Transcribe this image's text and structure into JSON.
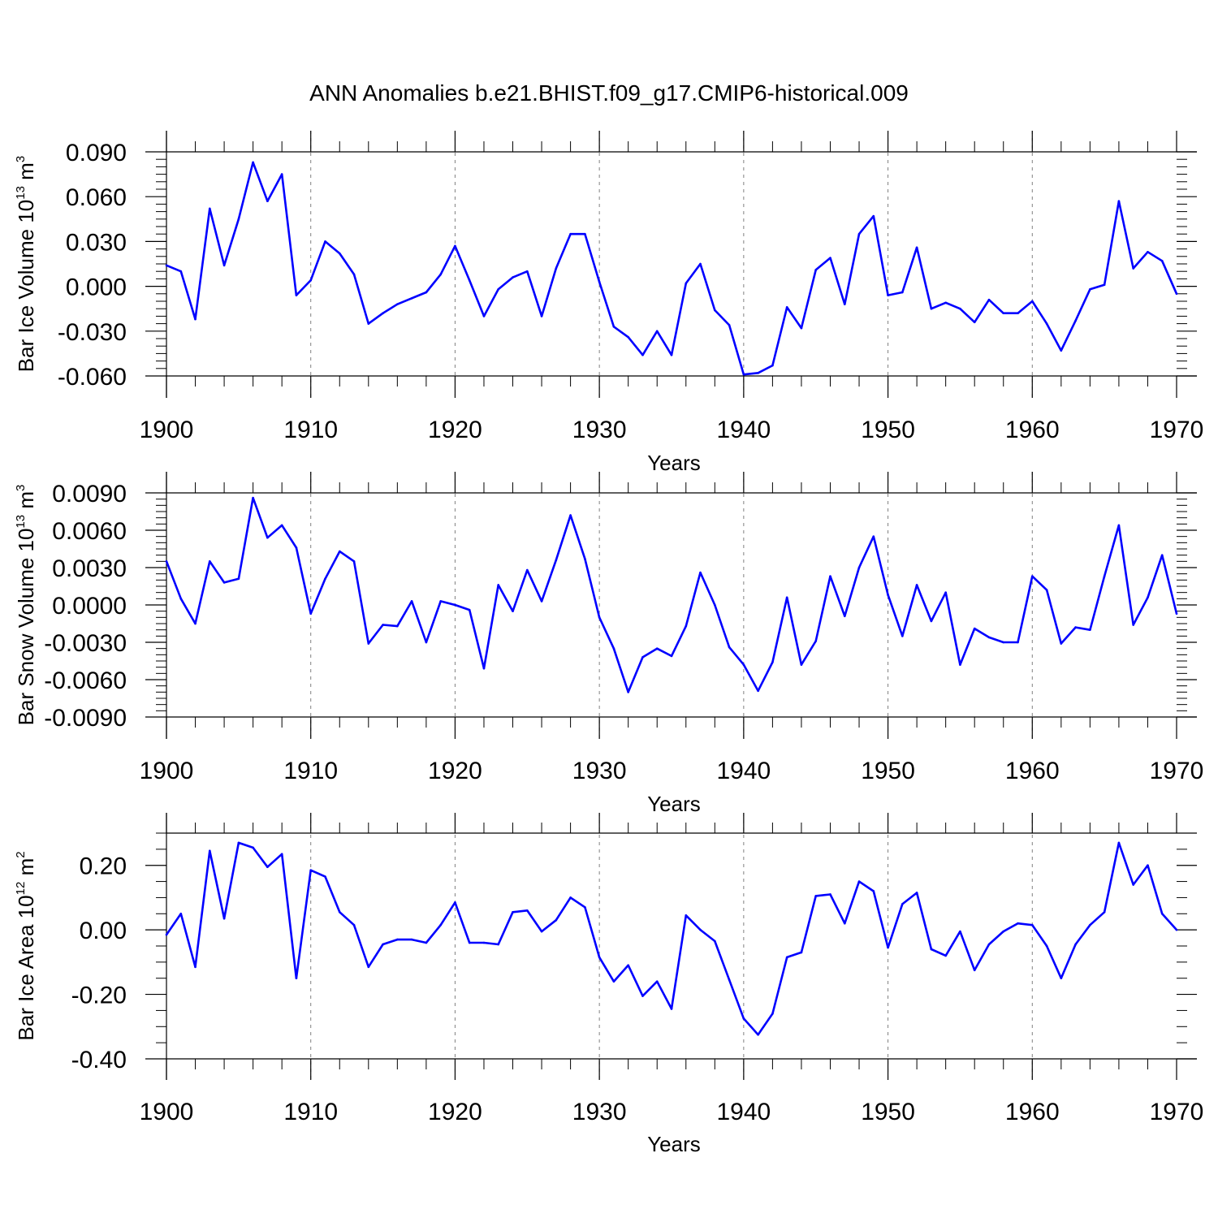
{
  "colors": {
    "line": "#0000ff",
    "axis": "#000000",
    "grid": "#808080",
    "background": "#ffffff"
  },
  "chart_data": {
    "title": "ANN Anomalies b.e21.BHIST.f09_g17.CMIP6-historical.009",
    "panels": [
      {
        "type": "line",
        "ylabel": {
          "base": "Bar Ice Volume 10",
          "exponent": "13",
          "unit": " m",
          "unit_exponent": "3"
        },
        "xlabel": "Years",
        "xlim": [
          1900,
          1970
        ],
        "ylim": [
          -0.06,
          0.09
        ],
        "xticks": [
          1900,
          1910,
          1920,
          1930,
          1940,
          1950,
          1960,
          1970
        ],
        "xtick_labels": [
          "1900",
          "1910",
          "1920",
          "1930",
          "1940",
          "1950",
          "1960",
          "1970"
        ],
        "yticks": [
          -0.06,
          -0.03,
          0.0,
          0.03,
          0.06,
          0.09
        ],
        "ytick_labels": [
          "-0.060",
          "-0.030",
          "0.000",
          "0.030",
          "0.060",
          "0.090"
        ],
        "grid_x": [
          1910,
          1920,
          1930,
          1940,
          1950,
          1960
        ],
        "x": [
          1900,
          1901,
          1902,
          1903,
          1904,
          1905,
          1906,
          1907,
          1908,
          1909,
          1910,
          1911,
          1912,
          1913,
          1914,
          1915,
          1916,
          1917,
          1918,
          1919,
          1920,
          1921,
          1922,
          1923,
          1924,
          1925,
          1926,
          1927,
          1928,
          1929,
          1930,
          1931,
          1932,
          1933,
          1934,
          1935,
          1936,
          1937,
          1938,
          1939,
          1940,
          1941,
          1942,
          1943,
          1944,
          1945,
          1946,
          1947,
          1948,
          1949,
          1950,
          1951,
          1952,
          1953,
          1954,
          1955,
          1956,
          1957,
          1958,
          1959,
          1960,
          1961,
          1962,
          1963,
          1964,
          1965,
          1966,
          1967,
          1968,
          1969,
          1970
        ],
        "y": [
          0.014,
          0.01,
          -0.022,
          0.052,
          0.014,
          0.045,
          0.083,
          0.057,
          0.075,
          -0.006,
          0.004,
          0.03,
          0.022,
          0.008,
          -0.025,
          -0.018,
          -0.012,
          -0.008,
          -0.004,
          0.008,
          0.027,
          0.004,
          -0.02,
          -0.002,
          0.006,
          0.01,
          -0.02,
          0.012,
          0.035,
          0.035,
          0.003,
          -0.027,
          -0.034,
          -0.046,
          -0.03,
          -0.046,
          0.002,
          0.015,
          -0.016,
          -0.026,
          -0.059,
          -0.058,
          -0.053,
          -0.014,
          -0.028,
          0.011,
          0.019,
          -0.012,
          0.035,
          0.047,
          -0.006,
          -0.004,
          0.026,
          -0.015,
          -0.011,
          -0.015,
          -0.024,
          -0.009,
          -0.018,
          -0.018,
          -0.01,
          -0.025,
          -0.043,
          -0.023,
          -0.002,
          0.001,
          0.057,
          0.012,
          0.023,
          0.017,
          -0.005
        ]
      },
      {
        "type": "line",
        "ylabel": {
          "base": "Bar Snow Volume 10",
          "exponent": "13",
          "unit": " m",
          "unit_exponent": "3"
        },
        "xlabel": "Years",
        "xlim": [
          1900,
          1970
        ],
        "ylim": [
          -0.009,
          0.009
        ],
        "xticks": [
          1900,
          1910,
          1920,
          1930,
          1940,
          1950,
          1960,
          1970
        ],
        "xtick_labels": [
          "1900",
          "1910",
          "1920",
          "1930",
          "1940",
          "1950",
          "1960",
          "1970"
        ],
        "yticks": [
          -0.009,
          -0.006,
          -0.003,
          0.0,
          0.003,
          0.006,
          0.009
        ],
        "ytick_labels": [
          "-0.0090",
          "-0.0060",
          "-0.0030",
          "0.0000",
          "0.0030",
          "0.0060",
          "0.0090"
        ],
        "grid_x": [
          1910,
          1920,
          1930,
          1940,
          1950,
          1960
        ],
        "x": [
          1900,
          1901,
          1902,
          1903,
          1904,
          1905,
          1906,
          1907,
          1908,
          1909,
          1910,
          1911,
          1912,
          1913,
          1914,
          1915,
          1916,
          1917,
          1918,
          1919,
          1920,
          1921,
          1922,
          1923,
          1924,
          1925,
          1926,
          1927,
          1928,
          1929,
          1930,
          1931,
          1932,
          1933,
          1934,
          1935,
          1936,
          1937,
          1938,
          1939,
          1940,
          1941,
          1942,
          1943,
          1944,
          1945,
          1946,
          1947,
          1948,
          1949,
          1950,
          1951,
          1952,
          1953,
          1954,
          1955,
          1956,
          1957,
          1958,
          1959,
          1960,
          1961,
          1962,
          1963,
          1964,
          1965,
          1966,
          1967,
          1968,
          1969,
          1970
        ],
        "y": [
          0.0035,
          0.0005,
          -0.0015,
          0.0035,
          0.0018,
          0.0021,
          0.0086,
          0.0054,
          0.0064,
          0.0046,
          -0.0007,
          0.0021,
          0.0043,
          0.0035,
          -0.0031,
          -0.0016,
          -0.0017,
          0.0003,
          -0.003,
          0.0003,
          0.0,
          -0.0004,
          -0.0051,
          0.0016,
          -0.0005,
          0.0028,
          0.0003,
          0.0036,
          0.0072,
          0.0037,
          -0.001,
          -0.0035,
          -0.007,
          -0.0042,
          -0.0035,
          -0.0041,
          -0.0017,
          0.0026,
          0.0,
          -0.0034,
          -0.0048,
          -0.0069,
          -0.0046,
          0.0006,
          -0.0048,
          -0.0029,
          0.0023,
          -0.0009,
          0.003,
          0.0055,
          0.0008,
          -0.0025,
          0.0016,
          -0.0013,
          0.001,
          -0.0048,
          -0.0019,
          -0.0026,
          -0.003,
          -0.003,
          0.0023,
          0.0012,
          -0.0031,
          -0.0018,
          -0.002,
          0.0023,
          0.0064,
          -0.0016,
          0.0006,
          0.004,
          -0.0007
        ]
      },
      {
        "type": "line",
        "ylabel": {
          "base": "Bar Ice Area 10",
          "exponent": "12",
          "unit": " m",
          "unit_exponent": "2"
        },
        "xlabel": "Years",
        "xlim": [
          1900,
          1970
        ],
        "ylim": [
          -0.4,
          0.3
        ],
        "xticks": [
          1900,
          1910,
          1920,
          1930,
          1940,
          1950,
          1960,
          1970
        ],
        "xtick_labels": [
          "1900",
          "1910",
          "1920",
          "1930",
          "1940",
          "1950",
          "1960",
          "1970"
        ],
        "yticks": [
          -0.4,
          -0.2,
          0.0,
          0.2
        ],
        "ytick_labels": [
          "-0.40",
          "-0.20",
          "0.00",
          "0.20"
        ],
        "grid_x": [
          1910,
          1920,
          1930,
          1940,
          1950,
          1960
        ],
        "x": [
          1900,
          1901,
          1902,
          1903,
          1904,
          1905,
          1906,
          1907,
          1908,
          1909,
          1910,
          1911,
          1912,
          1913,
          1914,
          1915,
          1916,
          1917,
          1918,
          1919,
          1920,
          1921,
          1922,
          1923,
          1924,
          1925,
          1926,
          1927,
          1928,
          1929,
          1930,
          1931,
          1932,
          1933,
          1934,
          1935,
          1936,
          1937,
          1938,
          1939,
          1940,
          1941,
          1942,
          1943,
          1944,
          1945,
          1946,
          1947,
          1948,
          1949,
          1950,
          1951,
          1952,
          1953,
          1954,
          1955,
          1956,
          1957,
          1958,
          1959,
          1960,
          1961,
          1962,
          1963,
          1964,
          1965,
          1966,
          1967,
          1968,
          1969,
          1970
        ],
        "y": [
          -0.015,
          0.05,
          -0.115,
          0.245,
          0.035,
          0.27,
          0.255,
          0.195,
          0.235,
          -0.15,
          0.185,
          0.165,
          0.055,
          0.015,
          -0.115,
          -0.045,
          -0.03,
          -0.03,
          -0.04,
          0.015,
          0.085,
          -0.04,
          -0.04,
          -0.045,
          0.055,
          0.06,
          -0.005,
          0.03,
          0.1,
          0.07,
          -0.085,
          -0.16,
          -0.11,
          -0.205,
          -0.16,
          -0.245,
          0.045,
          0.0,
          -0.035,
          -0.155,
          -0.275,
          -0.325,
          -0.26,
          -0.085,
          -0.07,
          0.105,
          0.11,
          0.02,
          0.15,
          0.12,
          -0.055,
          0.08,
          0.115,
          -0.06,
          -0.08,
          -0.005,
          -0.125,
          -0.045,
          -0.005,
          0.02,
          0.015,
          -0.05,
          -0.15,
          -0.045,
          0.015,
          0.055,
          0.27,
          0.14,
          0.2,
          0.05,
          0.0
        ]
      }
    ]
  }
}
